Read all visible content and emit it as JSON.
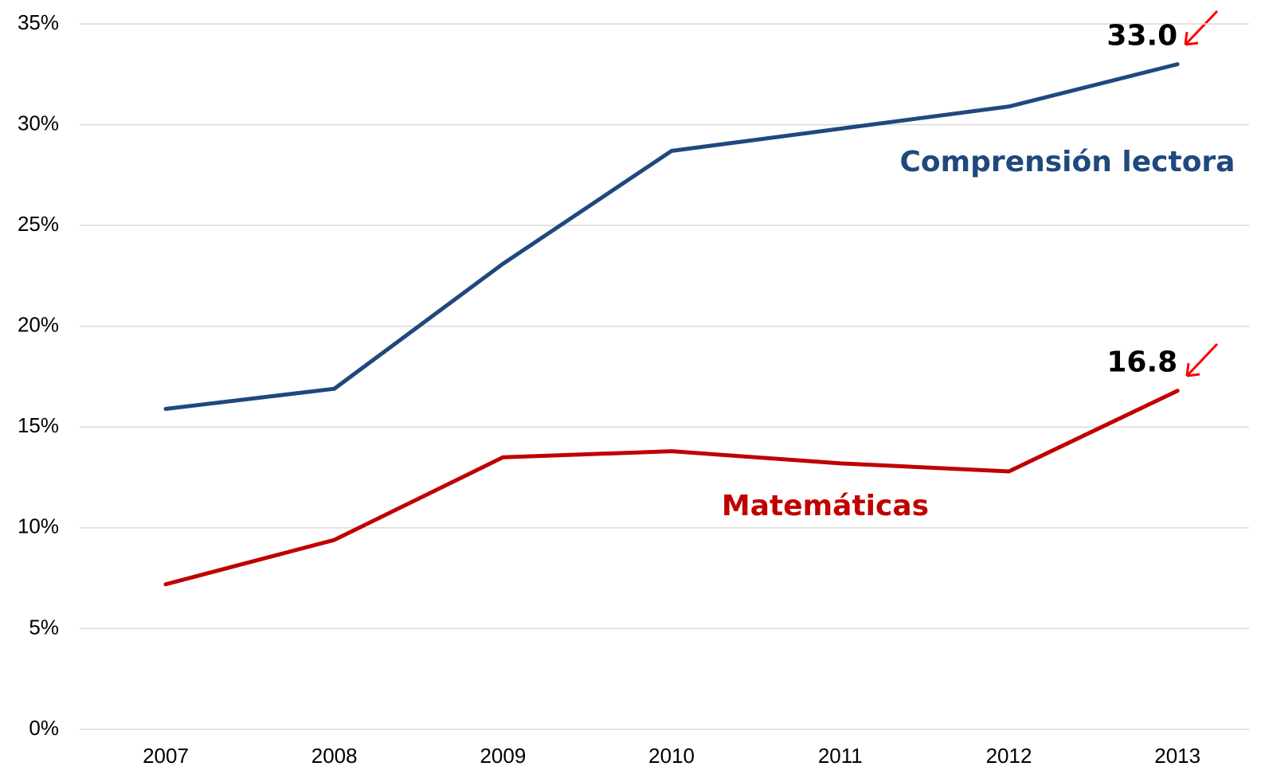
{
  "chart_data": {
    "type": "line",
    "categories": [
      "2007",
      "2008",
      "2009",
      "2010",
      "2011",
      "2012",
      "2013"
    ],
    "series": [
      {
        "name": "Comprensión lectora",
        "color": "#1f497d",
        "values": [
          15.9,
          16.9,
          23.1,
          28.7,
          29.8,
          30.9,
          33.0
        ],
        "value_labels": [
          null,
          null,
          null,
          null,
          null,
          null,
          "33.0"
        ]
      },
      {
        "name": "Matemáticas",
        "color": "#c00000",
        "values": [
          7.2,
          9.4,
          13.5,
          13.8,
          13.2,
          12.8,
          16.8
        ],
        "value_labels": [
          null,
          null,
          null,
          null,
          null,
          null,
          "16.8"
        ]
      }
    ],
    "ylim": [
      0,
      35
    ],
    "yticks": [
      {
        "value": 0,
        "label": "0%"
      },
      {
        "value": 5,
        "label": "5%"
      },
      {
        "value": 10,
        "label": "10%"
      },
      {
        "value": 15,
        "label": "15%"
      },
      {
        "value": 20,
        "label": "20%"
      },
      {
        "value": 25,
        "label": "25%"
      },
      {
        "value": 30,
        "label": "30%"
      },
      {
        "value": 35,
        "label": "35%"
      }
    ],
    "grid": true
  }
}
